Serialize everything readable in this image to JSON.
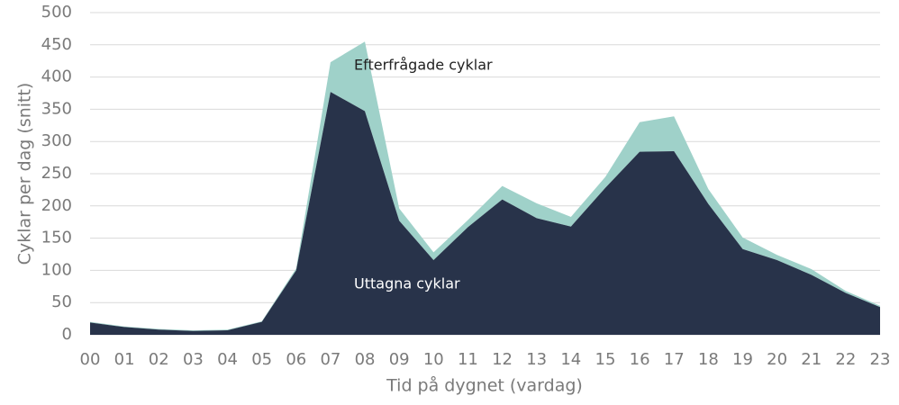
{
  "chart_data": {
    "type": "stacked_area",
    "x_label": "Tid på dygnet (vardag)",
    "y_label": "Cyklar per dag (snitt)",
    "categories": [
      "00",
      "01",
      "02",
      "03",
      "04",
      "05",
      "06",
      "07",
      "08",
      "09",
      "10",
      "11",
      "12",
      "13",
      "14",
      "15",
      "16",
      "17",
      "18",
      "19",
      "20",
      "21",
      "22",
      "23"
    ],
    "series": [
      {
        "name": "Uttagna cyklar",
        "color": "#28334a",
        "values": [
          19,
          12,
          8,
          6,
          7,
          20,
          100,
          377,
          347,
          177,
          116,
          167,
          210,
          181,
          168,
          228,
          284,
          285,
          203,
          133,
          116,
          93,
          65,
          43
        ]
      },
      {
        "name": "Efterfrågade cyklar",
        "color": "#9fd1c9",
        "values": [
          1,
          1,
          1,
          1,
          1,
          1,
          3,
          46,
          108,
          19,
          12,
          11,
          21,
          23,
          15,
          17,
          46,
          54,
          23,
          18,
          8,
          9,
          3,
          2
        ]
      }
    ],
    "ylim": [
      0,
      500
    ],
    "yticks": [
      0,
      50,
      100,
      150,
      200,
      250,
      300,
      350,
      400,
      450,
      500
    ],
    "grid": true
  }
}
